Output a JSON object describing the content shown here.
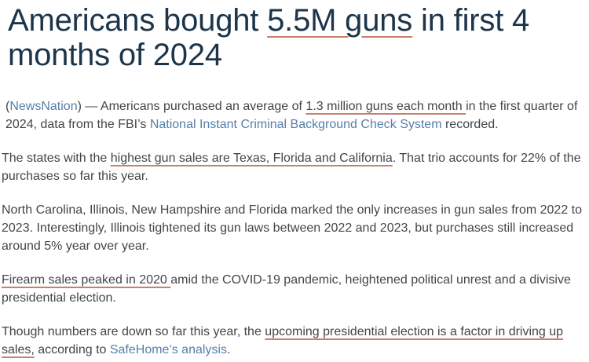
{
  "colors": {
    "background": "#ffffff",
    "heading_text": "#1d354a",
    "body_text": "#42454b",
    "link": "#567faa",
    "underline_accent": "#c98069"
  },
  "article": {
    "headline": {
      "segments": [
        {
          "type": "text",
          "text": "Americans bought "
        },
        {
          "type": "underline",
          "name": "guns-total-link",
          "text": "5.5M guns"
        },
        {
          "type": "text",
          "text": " in first 4 months of 2024"
        }
      ]
    },
    "paragraphs": [
      {
        "indent": true,
        "segments": [
          {
            "type": "text",
            "text": "("
          },
          {
            "type": "link",
            "name": "newsnation-link",
            "text": "NewsNation"
          },
          {
            "type": "text",
            "text": ") — Americans purchased an average of "
          },
          {
            "type": "underline",
            "name": "monthly-average-link",
            "text": "1.3 million guns each month "
          },
          {
            "type": "text",
            "text": "in the first quarter of 2024, data from the FBI’s "
          },
          {
            "type": "link",
            "name": "nics-link",
            "text": "National Instant Criminal Background Check System"
          },
          {
            "type": "text",
            "text": " recorded."
          }
        ]
      },
      {
        "indent": false,
        "segments": [
          {
            "type": "text",
            "text": "The states with the "
          },
          {
            "type": "underline",
            "name": "state-sales-link",
            "text": "highest gun sales are Texas, Florida and California"
          },
          {
            "type": "text",
            "text": ". That trio accounts for 22% of the purchases so far this year."
          }
        ]
      },
      {
        "indent": false,
        "segments": [
          {
            "type": "text",
            "text": "North Carolina, Illinois, New Hampshire and Florida marked the only increases in gun sales from 2022 to 2023. Interestingly, Illinois tightened its gun laws between 2022 and 2023, but purchases still increased around 5% year over year."
          }
        ]
      },
      {
        "indent": false,
        "segments": [
          {
            "type": "underline",
            "name": "sales-peak-link",
            "text": "Firearm sales peaked in 2020 "
          },
          {
            "type": "text",
            "text": "amid the COVID-19 pandemic, heightened political unrest and a divisive presidential election."
          }
        ]
      },
      {
        "indent": false,
        "segments": [
          {
            "type": "text",
            "text": "Though numbers are down so far this year, the "
          },
          {
            "type": "underline",
            "name": "election-driver-link",
            "text": "upcoming presidential election is a factor in driving up sales,"
          },
          {
            "type": "text",
            "text": " according to "
          },
          {
            "type": "link",
            "name": "safehome-link",
            "text": "SafeHome’s analysis"
          },
          {
            "type": "text",
            "text": "."
          }
        ]
      }
    ]
  }
}
